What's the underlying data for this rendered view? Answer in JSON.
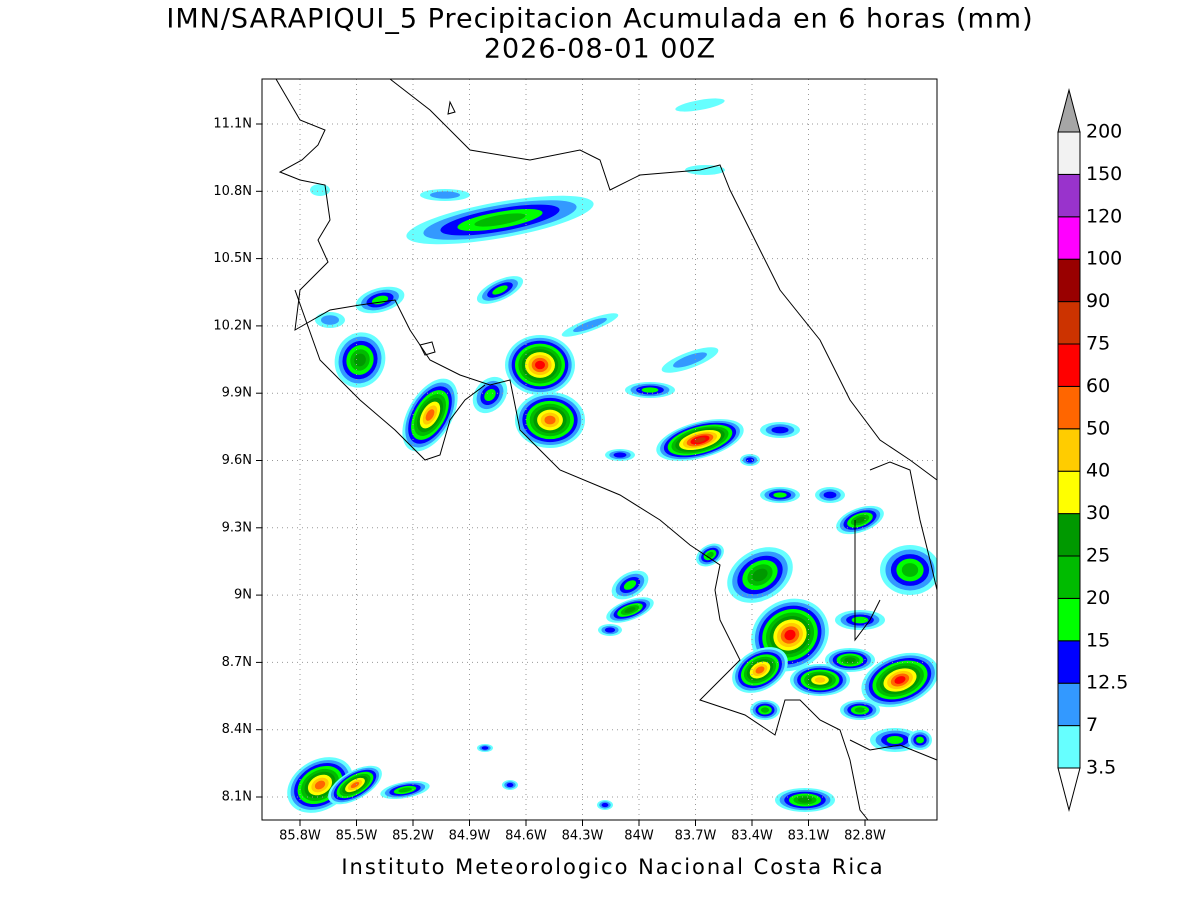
{
  "header": {
    "title": "IMN/SARAPIQUI_5 Precipitacion Acumulada en 6 horas (mm)",
    "subtitle": "2026-08-01 00Z"
  },
  "map": {
    "lon_ticks": [
      "85.8W",
      "85.5W",
      "85.2W",
      "84.9W",
      "84.6W",
      "84.3W",
      "84W",
      "83.7W",
      "83.4W",
      "83.1W",
      "82.8W"
    ],
    "lat_ticks": [
      "11.1N",
      "10.8N",
      "10.5N",
      "10.2N",
      "9.9N",
      "9.6N",
      "9.3N",
      "9N",
      "8.7N",
      "8.4N",
      "8.1N"
    ]
  },
  "legend": {
    "labels": [
      "3.5",
      "7",
      "12.5",
      "15",
      "20",
      "25",
      "30",
      "40",
      "50",
      "60",
      "75",
      "90",
      "100",
      "120",
      "150",
      "200"
    ],
    "colors": [
      "#ffffff",
      "#66ffff",
      "#3399ff",
      "#0000ff",
      "#00ff00",
      "#00bb00",
      "#009900",
      "#ffff00",
      "#ffcc00",
      "#ff6600",
      "#ff0000",
      "#cc3300",
      "#990000",
      "#ff00ff",
      "#9933cc",
      "#f2f2f2",
      "#a6a6a6"
    ]
  },
  "footer": "Instituto Meteorologico Nacional Costa Rica"
}
